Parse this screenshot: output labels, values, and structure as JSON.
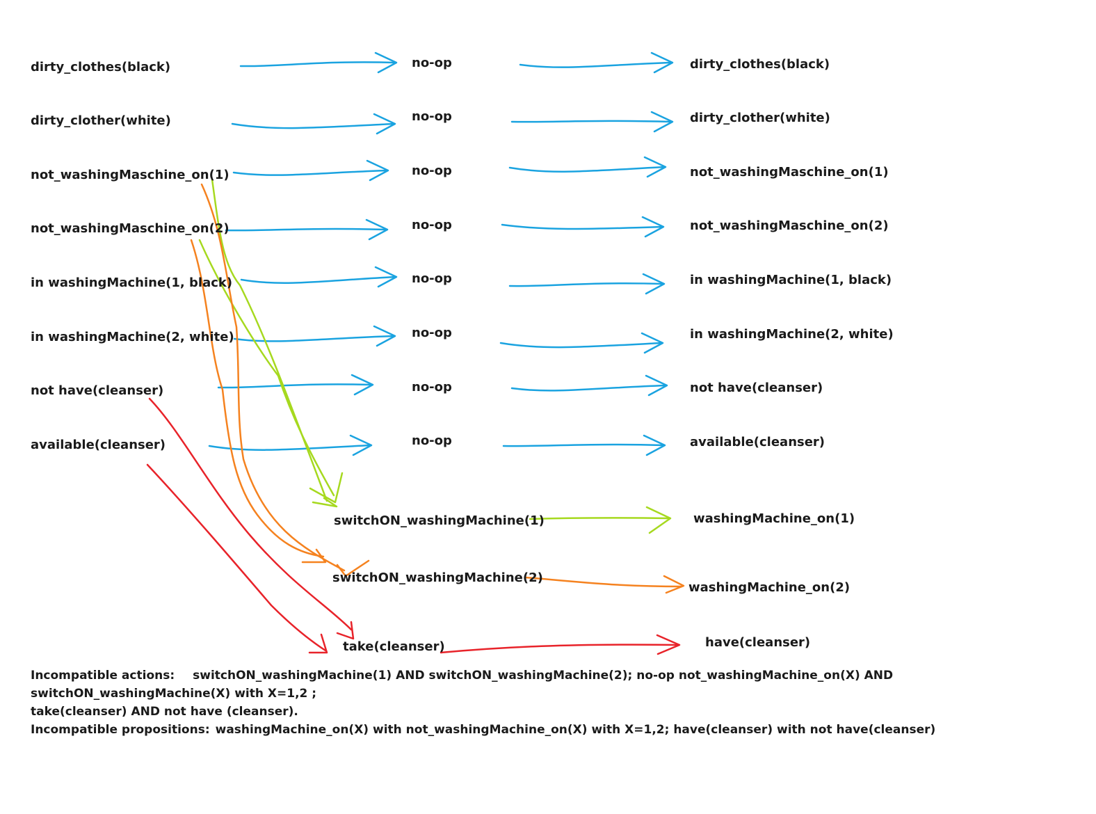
{
  "colors": {
    "noop_arrow": "#1aa3e0",
    "switch1_arrow": "#a6d91f",
    "switch2_arrow": "#f5821f",
    "cleanser_arrow": "#e8232a",
    "text": "#1a1a1a"
  },
  "states_level0": [
    "dirty_clothes(black)",
    "dirty_clother(white)",
    "not_washingMaschine_on(1)",
    "not_washingMaschine_on(2)",
    "in washingMachine(1, black)",
    "in washingMachine(2, white)",
    "not have(cleanser)",
    "available(cleanser)"
  ],
  "noop_label": "no-op",
  "actions": [
    "switchON_washingMachine(1)",
    "switchON_washingMachine(2)",
    "take(cleanser)"
  ],
  "states_level1": [
    "dirty_clothes(black)",
    "dirty_clother(white)",
    "not_washingMaschine_on(1)",
    "not_washingMaschine_on(2)",
    "in washingMachine(1, black)",
    "in washingMachine(2, white)",
    "not have(cleanser)",
    "available(cleanser)",
    "washingMachine_on(1)",
    "washingMachine_on(2)",
    "have(cleanser)"
  ],
  "notes": {
    "incompatible_actions_title": "Incompatible actions:",
    "incompatible_actions_line1": "switchON_washingMachine(1) AND switchON_washingMachine(2); no-op not_washingMachine_on(X) AND",
    "incompatible_actions_line2": "switchON_washingMachine(X) with X=1,2 ;",
    "incompatible_actions_line3": "take(cleanser) AND not have (cleanser).",
    "incompatible_propositions_title": "Incompatible propositions:",
    "incompatible_propositions_text": "washingMachine_on(X) with not_washingMachine_on(X) with X=1,2; have(cleanser) with not have(cleanser)"
  }
}
